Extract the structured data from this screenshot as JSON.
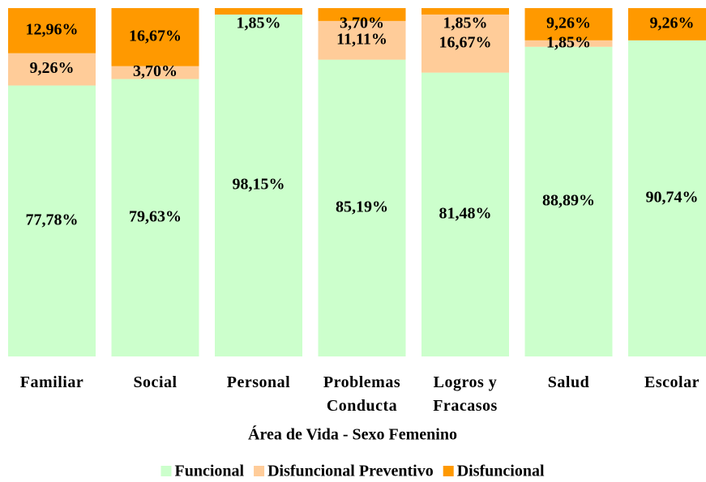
{
  "chart_data": {
    "type": "stacked_bar",
    "x_label": "Área de Vida - Sexo Femenino",
    "categories": [
      "Familiar",
      "Social",
      "Personal",
      "Problemas Conducta",
      "Logros y Fracasos",
      "Salud",
      "Escolar"
    ],
    "ylim": [
      0,
      100
    ],
    "series": [
      {
        "name": "Funcional",
        "color": "#ccffcc",
        "values": [
          77.78,
          79.63,
          98.15,
          85.19,
          81.48,
          88.89,
          90.74
        ],
        "value_labels": [
          "77,78%",
          "79,63%",
          "98,15%",
          "85,19%",
          "81,48%",
          "88,89%",
          "90,74%"
        ]
      },
      {
        "name": "Disfuncional Preventivo",
        "color": "#ffcc99",
        "values": [
          9.26,
          3.7,
          0,
          11.11,
          16.67,
          1.85,
          0
        ],
        "value_labels": [
          "9,26%",
          "3,70%",
          null,
          "11,11%",
          "16,67%",
          "1,85%",
          null
        ]
      },
      {
        "name": "Disfuncional",
        "color": "#ff9900",
        "values": [
          12.96,
          16.67,
          1.85,
          3.7,
          1.85,
          9.26,
          9.26
        ],
        "value_labels": [
          "12,96%",
          "16,67%",
          "1,85%",
          "3,70%",
          "1,85%",
          "9,26%",
          "9,26%"
        ]
      }
    ],
    "legend": "bottom"
  }
}
